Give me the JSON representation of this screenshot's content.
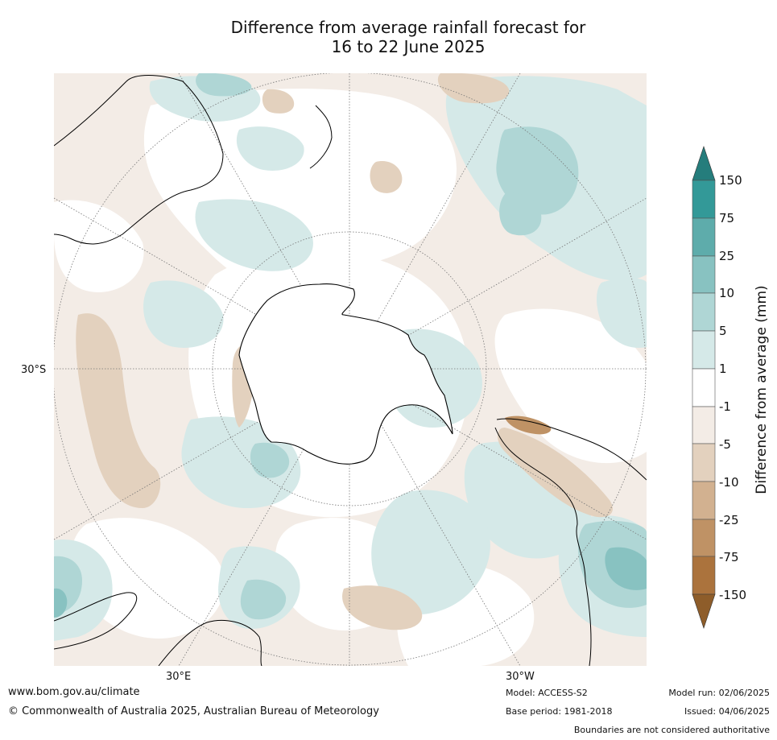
{
  "title_line1": "Difference from average rainfall forecast for",
  "title_line2": "16 to 22 June 2025",
  "map": {
    "projection": "south-polar-stereographic",
    "lat_label": "30°S",
    "lon_labels": [
      "30°E",
      "30°W"
    ],
    "legend_colors": {
      "-150": "#8e5d2a",
      "-75": "#ab733d",
      "-25": "#bf9265",
      "-10": "#d2b190",
      "-5": "#e3d1be",
      "-1": "#f3ece6",
      "1": "#ffffff",
      "5": "#d5e9e8",
      "10": "#afd6d5",
      "25": "#88c2c1",
      "75": "#5eacab",
      "150": "#339998",
      "extend_high": "#257d7c"
    }
  },
  "colorbar": {
    "title": "Difference from average (mm)",
    "ticks": [
      "150",
      "75",
      "25",
      "10",
      "5",
      "1",
      "-1",
      "-5",
      "-10",
      "-25",
      "-75",
      "-150"
    ]
  },
  "footer": {
    "website": "www.bom.gov.au/climate",
    "copyright": "© Commonwealth of Australia 2025, Australian Bureau of Meteorology",
    "model": "Model: ACCESS-S2",
    "base_period": "Base period: 1981-2018",
    "model_run": "Model run: 02/06/2025",
    "issued": "Issued: 04/06/2025",
    "disclaimer": "Boundaries are not considered authoritative"
  }
}
